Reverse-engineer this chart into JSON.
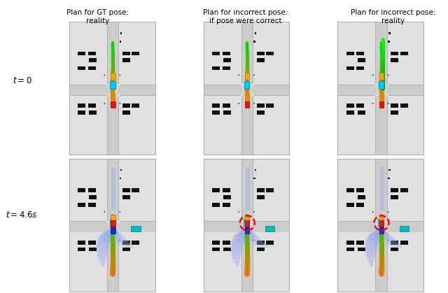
{
  "title_col1": "Plan for GT pose:\nreality",
  "title_col2": "Plan for incorrect pose:\nif pose were correct",
  "title_col3": "Plan for incorrect pose:\nreality",
  "label_row1": "$t = 0$",
  "label_row2": "$t = 4.6s$",
  "bg_color": "#e0e0e0",
  "road_color": "#cccccc",
  "road_lighter": "#d8d8d8",
  "intersection_color": "#d4d4d4",
  "road_border_color": "#bbbbbb",
  "sidewalk_color": "#f0f0f0",
  "white": "#ffffff",
  "car_ego_color": "#00ccff",
  "car_orange_color": "#ffa500",
  "car_red_color": "#ee1111",
  "car_blue_color": "#1133cc",
  "car_cyan_color": "#00bbbb",
  "car_yellow_color": "#ddcc00",
  "parked_car_color": "#111111",
  "traj_blue_light": "#99aaee",
  "intersection_outline": "#ccbb88",
  "figure_bg": "#ffffff",
  "panel_border": "#aaaaaa"
}
